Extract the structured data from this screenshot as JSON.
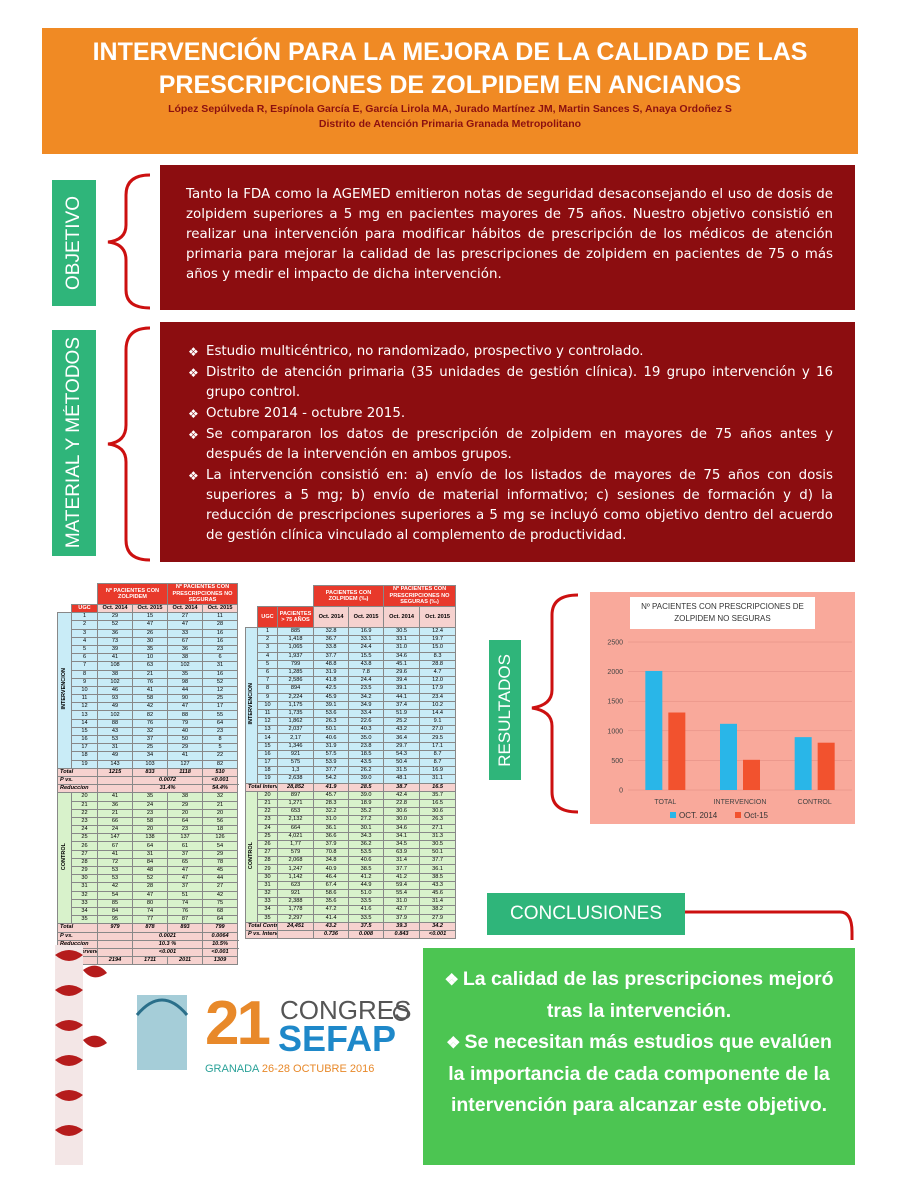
{
  "header": {
    "title": "INTERVENCIÓN PARA LA MEJORA DE LA CALIDAD DE LAS PRESCRIPCIONES DE ZOLPIDEM EN ANCIANOS",
    "authors": "López Sepúlveda R, Espínola García E, García Lirola MA, Jurado Martínez JM, Martin Sances S, Anaya Ordoñez S",
    "affiliation": "Distrito de Atención Primaria Granada Metropolitano"
  },
  "objetivo": {
    "label": "OBJETIVO",
    "text": "Tanto la FDA como la AGEMED emitieron notas de seguridad desaconsejando el uso de dosis de zolpidem superiores a 5 mg en pacientes mayores de 75 años. Nuestro objetivo consistió en realizar una intervención para modificar hábitos de prescripción de los médicos de atención primaria para mejorar la calidad de las prescripciones de zolpidem en pacientes de 75 o más años y medir el impacto de dicha intervención."
  },
  "metodos": {
    "label": "MATERIAL Y MÉTODOS",
    "items": [
      "Estudio multicéntrico, no randomizado, prospectivo y controlado.",
      "Distrito de atención primaria (35 unidades de gestión clínica). 19 grupo intervención y 16 grupo control.",
      "Octubre 2014 - octubre 2015.",
      "Se compararon los datos de prescripción de zolpidem en mayores de 75 años antes y después de la intervención en ambos grupos.",
      "La intervención consistió en: a) envío de los listados de mayores de 75 años con dosis superiores a 5 mg; b) envío de material informativo; c) sesiones de formación y d) la reducción de prescripciones superiores a 5 mg se incluyó como objetivo dentro del acuerdo de gestión clínica vinculado al complemento de productividad."
    ]
  },
  "table1": {
    "groups": [
      "Nº PACIENTES CON ZOLPIDEM",
      "Nº PACIENTES CON PRESCRIPCIONES NO SEGURAS"
    ],
    "columns": [
      "UGC",
      "Oct. 2014",
      "Oct. 2015",
      "Oct. 2014",
      "Oct. 2015"
    ],
    "sections": [
      {
        "name": "INTERVENCION",
        "rows": [
          [
            "1",
            "29",
            "15",
            "27",
            "11"
          ],
          [
            "2",
            "52",
            "47",
            "47",
            "28"
          ],
          [
            "3",
            "36",
            "26",
            "33",
            "16"
          ],
          [
            "4",
            "73",
            "30",
            "67",
            "16"
          ],
          [
            "5",
            "39",
            "35",
            "36",
            "23"
          ],
          [
            "6",
            "41",
            "10",
            "38",
            "6"
          ],
          [
            "7",
            "108",
            "63",
            "102",
            "31"
          ],
          [
            "8",
            "38",
            "21",
            "35",
            "16"
          ],
          [
            "9",
            "102",
            "76",
            "98",
            "52"
          ],
          [
            "10",
            "46",
            "41",
            "44",
            "12"
          ],
          [
            "11",
            "93",
            "58",
            "90",
            "25"
          ],
          [
            "12",
            "49",
            "42",
            "47",
            "17"
          ],
          [
            "13",
            "102",
            "82",
            "88",
            "55"
          ],
          [
            "14",
            "88",
            "76",
            "79",
            "64"
          ],
          [
            "15",
            "43",
            "32",
            "40",
            "23"
          ],
          [
            "16",
            "53",
            "37",
            "50",
            "8"
          ],
          [
            "17",
            "31",
            "25",
            "29",
            "5"
          ],
          [
            "18",
            "49",
            "34",
            "41",
            "22"
          ],
          [
            "19",
            "143",
            "103",
            "127",
            "82"
          ]
        ],
        "summary": [
          [
            "Total",
            "1215",
            "833",
            "1118",
            "510"
          ],
          [
            "P vs.",
            "0.0072",
            "<0.001"
          ],
          [
            "Reduccion",
            "31.4%",
            "54.4%"
          ]
        ]
      },
      {
        "name": "CONTROL",
        "rows": [
          [
            "20",
            "41",
            "35",
            "38",
            "32"
          ],
          [
            "21",
            "36",
            "24",
            "29",
            "21"
          ],
          [
            "22",
            "21",
            "23",
            "20",
            "20"
          ],
          [
            "23",
            "66",
            "58",
            "64",
            "56"
          ],
          [
            "24",
            "24",
            "20",
            "23",
            "18"
          ],
          [
            "25",
            "147",
            "138",
            "137",
            "126"
          ],
          [
            "26",
            "67",
            "64",
            "61",
            "54"
          ],
          [
            "27",
            "41",
            "31",
            "37",
            "29"
          ],
          [
            "28",
            "72",
            "84",
            "65",
            "78"
          ],
          [
            "29",
            "53",
            "48",
            "47",
            "45"
          ],
          [
            "30",
            "53",
            "52",
            "47",
            "44"
          ],
          [
            "31",
            "42",
            "28",
            "37",
            "27"
          ],
          [
            "32",
            "54",
            "47",
            "51",
            "42"
          ],
          [
            "33",
            "85",
            "80",
            "74",
            "75"
          ],
          [
            "34",
            "84",
            "74",
            "76",
            "68"
          ],
          [
            "35",
            "95",
            "77",
            "87",
            "64"
          ]
        ],
        "summary": [
          [
            "Total",
            "979",
            "878",
            "893",
            "799"
          ],
          [
            "P vs.",
            "0.0021",
            "0.0064"
          ],
          [
            "Reduccion",
            "10.3 %",
            "10.5%"
          ],
          [
            "P vs. Intervencion",
            "<0.001",
            "<0.001"
          ]
        ]
      }
    ],
    "footer": [
      [
        "Total",
        "2194",
        "1711",
        "2011",
        "1309"
      ]
    ]
  },
  "table2": {
    "groups": [
      "PACIENTES CON ZOLPIDEM (‰)",
      "Nº PACIENTES CON PRESCRIPCIONES NO SEGURAS (‰)"
    ],
    "columns": [
      "UGC",
      "PACIENTES > 75 AÑOS",
      "Oct. 2014",
      "Oct. 2015",
      "Oct. 2014",
      "Oct. 2015"
    ],
    "sections": [
      {
        "name": "INTERVENCION",
        "rows": [
          [
            "1",
            "885",
            "32.8",
            "16.9",
            "30.5",
            "12.4"
          ],
          [
            "2",
            "1,418",
            "36.7",
            "33.1",
            "33.1",
            "19.7"
          ],
          [
            "3",
            "1,065",
            "33.8",
            "24.4",
            "31.0",
            "15.0"
          ],
          [
            "4",
            "1,937",
            "37.7",
            "15.5",
            "34.6",
            "8.3"
          ],
          [
            "5",
            "799",
            "48.8",
            "43.8",
            "45.1",
            "28.8"
          ],
          [
            "6",
            "1,285",
            "31.9",
            "7.8",
            "29.6",
            "4.7"
          ],
          [
            "7",
            "2,586",
            "41.8",
            "24.4",
            "39.4",
            "12.0"
          ],
          [
            "8",
            "894",
            "42.5",
            "23.5",
            "39.1",
            "17.9"
          ],
          [
            "9",
            "2,224",
            "45.9",
            "34.2",
            "44.1",
            "23.4"
          ],
          [
            "10",
            "1,175",
            "39.1",
            "34.9",
            "37.4",
            "10.2"
          ],
          [
            "11",
            "1,735",
            "53.6",
            "33.4",
            "51.9",
            "14.4"
          ],
          [
            "12",
            "1,862",
            "26.3",
            "22.6",
            "25.2",
            "9.1"
          ],
          [
            "13",
            "2,037",
            "50.1",
            "40.3",
            "43.2",
            "27.0"
          ],
          [
            "14",
            "2,17",
            "40.6",
            "35.0",
            "36.4",
            "29.5"
          ],
          [
            "15",
            "1,346",
            "31.9",
            "23.8",
            "29.7",
            "17.1"
          ],
          [
            "16",
            "921",
            "57.5",
            "18.5",
            "54.3",
            "8.7"
          ],
          [
            "17",
            "575",
            "53.9",
            "43.5",
            "50.4",
            "8.7"
          ],
          [
            "18",
            "1,3",
            "37.7",
            "26.2",
            "31.5",
            "16.9"
          ],
          [
            "19",
            "2,638",
            "54.2",
            "39.0",
            "48.1",
            "31.1"
          ]
        ],
        "summary": [
          [
            "Total Intervención",
            "28,852",
            "41.9",
            "28.5",
            "38.7",
            "16.5"
          ]
        ]
      },
      {
        "name": "CONTROL",
        "rows": [
          [
            "20",
            "897",
            "45.7",
            "39.0",
            "42.4",
            "35.7"
          ],
          [
            "21",
            "1,271",
            "28.3",
            "18.9",
            "22.8",
            "16.5"
          ],
          [
            "22",
            "653",
            "32.2",
            "35.2",
            "30.6",
            "30.6"
          ],
          [
            "23",
            "2,132",
            "31.0",
            "27.2",
            "30.0",
            "26.3"
          ],
          [
            "24",
            "664",
            "36.1",
            "30.1",
            "34.6",
            "27.1"
          ],
          [
            "25",
            "4,021",
            "36.6",
            "34.3",
            "34.1",
            "31.3"
          ],
          [
            "26",
            "1,77",
            "37.9",
            "36.2",
            "34.5",
            "30.5"
          ],
          [
            "27",
            "579",
            "70.8",
            "53.5",
            "63.9",
            "50.1"
          ],
          [
            "28",
            "2,068",
            "34.8",
            "40.6",
            "31.4",
            "37.7"
          ],
          [
            "29",
            "1,247",
            "40.9",
            "38.5",
            "37.7",
            "36.1"
          ],
          [
            "30",
            "1,142",
            "46.4",
            "41.2",
            "41.2",
            "38.5"
          ],
          [
            "31",
            "623",
            "67.4",
            "44.9",
            "59.4",
            "43.3"
          ],
          [
            "32",
            "921",
            "58.6",
            "51.0",
            "55.4",
            "45.6"
          ],
          [
            "33",
            "2,388",
            "35.6",
            "33.5",
            "31.0",
            "31.4"
          ],
          [
            "34",
            "1,778",
            "47.2",
            "41.6",
            "42.7",
            "38.2"
          ],
          [
            "35",
            "2,297",
            "41.4",
            "33.5",
            "37.9",
            "27.9"
          ]
        ],
        "summary": [
          [
            "Total Control",
            "24,451",
            "43.2",
            "37.5",
            "39.3",
            "34.2"
          ],
          [
            "P vs. Intervención",
            "0.736",
            "0.008",
            "0.843",
            "<0.001"
          ]
        ]
      }
    ]
  },
  "resultados_label": "RESULTADOS",
  "chart_data": {
    "type": "bar",
    "title": "Nº PACIENTES CON PRESCRIPCIONES DE ZOLPIDEM NO SEGURAS",
    "categories": [
      "TOTAL",
      "INTERVENCION",
      "CONTROL"
    ],
    "series": [
      {
        "name": "OCT. 2014",
        "color": "#29b6e8",
        "values": [
          2011,
          1118,
          893
        ]
      },
      {
        "name": "Oct-15",
        "color": "#f2522e",
        "values": [
          1309,
          510,
          799
        ]
      }
    ],
    "ylim": [
      0,
      2500
    ],
    "yticks": [
      0,
      500,
      1000,
      1500,
      2000,
      2500
    ],
    "legend": "bottom"
  },
  "conclusiones": {
    "label": "CONCLUSIONES",
    "items": [
      "La calidad de las prescripciones mejoró tras la intervención.",
      "Se necesitan más estudios que evalúen la importancia de cada componente de la intervención para alcanzar este objetivo."
    ]
  },
  "logo": {
    "number": "21",
    "congress": "CONGRES",
    "name": "SEFAP",
    "city": "GRANADA",
    "dates": "26-28 OCTUBRE 2016"
  }
}
